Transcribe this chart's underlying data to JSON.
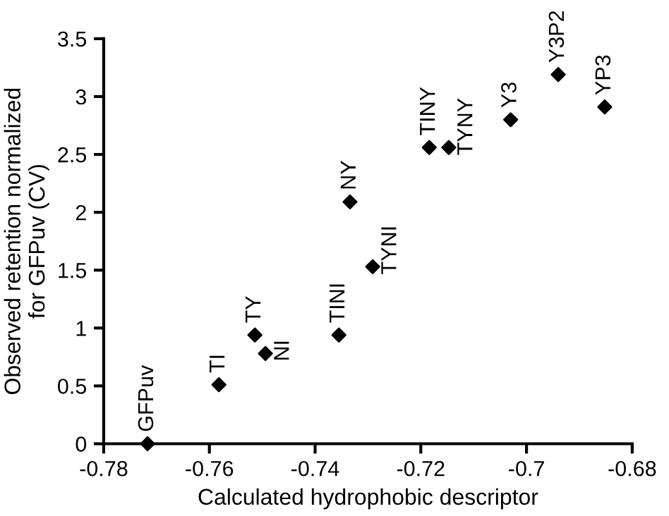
{
  "chart_data": {
    "type": "scatter",
    "xlabel": "Calculated hydrophobic descriptor",
    "ylabel": "Observed retention normalized\nfor GFPuv (CV)",
    "x": [
      -0.7717,
      -0.7582,
      -0.7514,
      -0.7494,
      -0.7355,
      -0.7334,
      -0.7291,
      -0.7184,
      -0.7147,
      -0.703,
      -0.694,
      -0.6852
    ],
    "series": [
      {
        "color": "#000000",
        "values": [
          0,
          0.51,
          0.94,
          0.78,
          0.94,
          2.09,
          1.53,
          2.56,
          2.56,
          2.8,
          3.19,
          2.91
        ]
      }
    ],
    "marker": "diamond",
    "grid": false,
    "xlim": [
      -0.78,
      -0.68
    ],
    "xticks": [
      {
        "value": -0.78,
        "label": "-0.78"
      },
      {
        "value": -0.76,
        "label": "-0.76"
      },
      {
        "value": -0.74,
        "label": "-0.74"
      },
      {
        "value": -0.72,
        "label": "-0.72"
      },
      {
        "value": -0.7,
        "label": "-0.7"
      },
      {
        "value": -0.68,
        "label": "-0.68"
      }
    ],
    "ylim": [
      0,
      3.5
    ],
    "yticks": [
      0,
      0.5,
      1,
      1.5,
      2,
      2.5,
      3,
      3.5
    ],
    "annotations": [
      {
        "text": "GFPuv",
        "x": -0.7717,
        "y": 0
      },
      {
        "text": "TI",
        "x": -0.7582,
        "y": 0.51
      },
      {
        "text": "TY",
        "x": -0.7514,
        "y": 0.94
      },
      {
        "text": "NI",
        "x": -0.7494,
        "y": 0.78
      },
      {
        "text": "TINI",
        "x": -0.7355,
        "y": 0.94
      },
      {
        "text": "NY",
        "x": -0.7334,
        "y": 2.09
      },
      {
        "text": "TYNI",
        "x": -0.7291,
        "y": 1.53
      },
      {
        "text": "TINY",
        "x": -0.7184,
        "y": 2.56
      },
      {
        "text": "TYNY",
        "x": -0.7147,
        "y": 2.56
      },
      {
        "text": "Y3",
        "x": -0.703,
        "y": 2.8
      },
      {
        "text": "Y3P2",
        "x": -0.694,
        "y": 3.19
      },
      {
        "text": "YP3",
        "x": -0.6852,
        "y": 2.91
      }
    ]
  }
}
